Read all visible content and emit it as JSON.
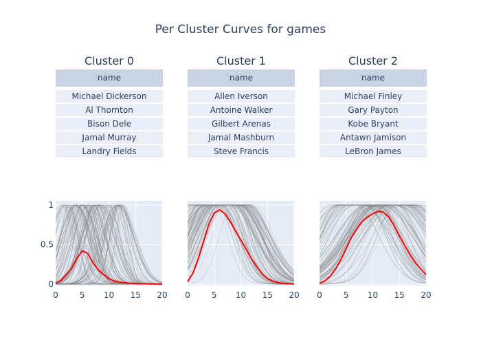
{
  "title": "Per Cluster Curves for games",
  "table_header": "name",
  "clusters": [
    {
      "title": "Cluster 0",
      "names": [
        "Michael Dickerson",
        "Al Thornton",
        "Bison Dele",
        "Jamal Murray",
        "Landry Fields"
      ]
    },
    {
      "title": "Cluster 1",
      "names": [
        "Allen Iverson",
        "Antoine Walker",
        "Gilbert Arenas",
        "Jamal Mashburn",
        "Steve Francis"
      ]
    },
    {
      "title": "Cluster 2",
      "names": [
        "Michael Finley",
        "Gary Payton",
        "Kobe Bryant",
        "Antawn Jamison",
        "LeBron James"
      ]
    }
  ],
  "chart_data": {
    "type": "line",
    "xlim": [
      0,
      20
    ],
    "ylim": [
      0,
      1
    ],
    "xticks": [
      "0",
      "5",
      "10",
      "15",
      "20"
    ],
    "yticks": [
      "0",
      "0.5",
      "1"
    ],
    "grid": true,
    "colors": {
      "mean_curve": "#ff0000",
      "member_curves": "#808080",
      "plot_bg": "#e5ecf6"
    },
    "series": [
      {
        "cluster": "Cluster 0",
        "x": [
          0,
          1,
          2,
          3,
          4,
          5,
          6,
          7,
          8,
          9,
          10,
          11,
          12,
          13,
          14,
          15,
          16,
          17,
          18,
          19,
          20
        ],
        "y": [
          0.01,
          0.05,
          0.12,
          0.2,
          0.33,
          0.42,
          0.39,
          0.27,
          0.18,
          0.12,
          0.07,
          0.04,
          0.025,
          0.018,
          0.012,
          0.008,
          0.005,
          0.004,
          0.003,
          0.002,
          0.001
        ]
      },
      {
        "cluster": "Cluster 1",
        "x": [
          0,
          1,
          2,
          3,
          4,
          5,
          6,
          7,
          8,
          9,
          10,
          11,
          12,
          13,
          14,
          15,
          16,
          17,
          18,
          19,
          20
        ],
        "y": [
          0.03,
          0.14,
          0.32,
          0.54,
          0.76,
          0.9,
          0.94,
          0.89,
          0.79,
          0.67,
          0.56,
          0.44,
          0.32,
          0.22,
          0.13,
          0.07,
          0.04,
          0.02,
          0.01,
          0.005,
          0.002
        ]
      },
      {
        "cluster": "Cluster 2",
        "x": [
          0,
          1,
          2,
          3,
          4,
          5,
          6,
          7,
          8,
          9,
          10,
          11,
          12,
          13,
          14,
          15,
          16,
          17,
          18,
          19,
          20
        ],
        "y": [
          0.01,
          0.04,
          0.1,
          0.19,
          0.31,
          0.45,
          0.59,
          0.7,
          0.79,
          0.85,
          0.89,
          0.92,
          0.91,
          0.85,
          0.74,
          0.61,
          0.49,
          0.37,
          0.27,
          0.19,
          0.12
        ]
      }
    ]
  }
}
